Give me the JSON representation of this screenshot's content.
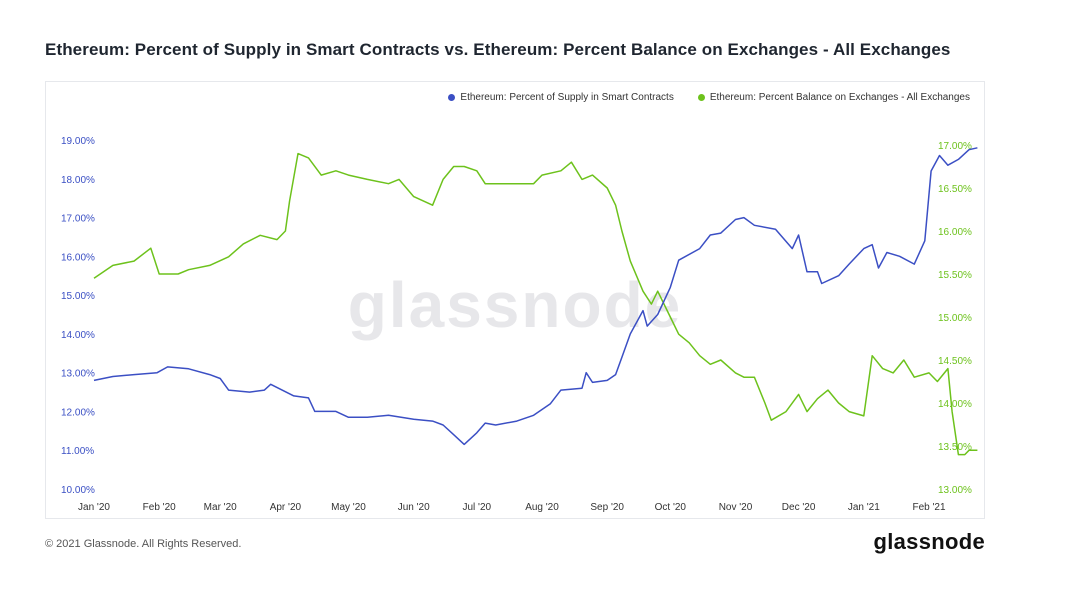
{
  "header": {
    "title": "Ethereum: Percent of Supply in Smart Contracts vs. Ethereum: Percent Balance on Exchanges - All Exchanges"
  },
  "footer": {
    "copyright": "© 2021 Glassnode. All Rights Reserved.",
    "brand": "glassnode",
    "watermark": "glassnode"
  },
  "colors": {
    "blue": "#3b4fc4",
    "green": "#6dc21c"
  },
  "chart_data": {
    "type": "line",
    "x_ticks": [
      "Jan '20",
      "Feb '20",
      "Mar '20",
      "Apr '20",
      "May '20",
      "Jun '20",
      "Jul '20",
      "Aug '20",
      "Sep '20",
      "Oct '20",
      "Nov '20",
      "Dec '20",
      "Jan '21",
      "Feb '21"
    ],
    "y_left": {
      "ticks": [
        "10.00%",
        "11.00%",
        "12.00%",
        "13.00%",
        "14.00%",
        "15.00%",
        "16.00%",
        "17.00%",
        "18.00%",
        "19.00%"
      ],
      "range": [
        10,
        19
      ]
    },
    "y_right": {
      "ticks": [
        "13.00%",
        "13.50%",
        "14.00%",
        "14.50%",
        "15.00%",
        "15.50%",
        "16.00%",
        "16.50%",
        "17.00%"
      ],
      "range": [
        13,
        17
      ]
    },
    "legend_position": "top-right",
    "series": [
      {
        "name": "Ethereum: Percent of Supply in Smart Contracts",
        "axis": "left",
        "points": [
          [
            "2020-01-01",
            12.8
          ],
          [
            "2020-01-10",
            12.9
          ],
          [
            "2020-01-20",
            12.95
          ],
          [
            "2020-01-31",
            13.0
          ],
          [
            "2020-02-05",
            13.15
          ],
          [
            "2020-02-15",
            13.1
          ],
          [
            "2020-02-25",
            12.95
          ],
          [
            "2020-03-01",
            12.85
          ],
          [
            "2020-03-05",
            12.55
          ],
          [
            "2020-03-15",
            12.5
          ],
          [
            "2020-03-22",
            12.55
          ],
          [
            "2020-03-25",
            12.7
          ],
          [
            "2020-04-05",
            12.4
          ],
          [
            "2020-04-12",
            12.35
          ],
          [
            "2020-04-15",
            12.0
          ],
          [
            "2020-04-25",
            12.0
          ],
          [
            "2020-05-01",
            11.85
          ],
          [
            "2020-05-10",
            11.85
          ],
          [
            "2020-05-20",
            11.9
          ],
          [
            "2020-06-01",
            11.8
          ],
          [
            "2020-06-10",
            11.75
          ],
          [
            "2020-06-15",
            11.65
          ],
          [
            "2020-06-20",
            11.4
          ],
          [
            "2020-06-25",
            11.15
          ],
          [
            "2020-07-01",
            11.45
          ],
          [
            "2020-07-05",
            11.7
          ],
          [
            "2020-07-10",
            11.65
          ],
          [
            "2020-07-20",
            11.75
          ],
          [
            "2020-07-28",
            11.9
          ],
          [
            "2020-08-05",
            12.2
          ],
          [
            "2020-08-10",
            12.55
          ],
          [
            "2020-08-20",
            12.6
          ],
          [
            "2020-08-22",
            13.0
          ],
          [
            "2020-08-25",
            12.75
          ],
          [
            "2020-09-01",
            12.8
          ],
          [
            "2020-09-05",
            12.95
          ],
          [
            "2020-09-08",
            13.4
          ],
          [
            "2020-09-12",
            14.0
          ],
          [
            "2020-09-18",
            14.6
          ],
          [
            "2020-09-20",
            14.2
          ],
          [
            "2020-09-25",
            14.5
          ],
          [
            "2020-10-01",
            15.2
          ],
          [
            "2020-10-05",
            15.9
          ],
          [
            "2020-10-15",
            16.2
          ],
          [
            "2020-10-20",
            16.55
          ],
          [
            "2020-10-25",
            16.6
          ],
          [
            "2020-11-01",
            16.95
          ],
          [
            "2020-11-05",
            17.0
          ],
          [
            "2020-11-10",
            16.8
          ],
          [
            "2020-11-20",
            16.7
          ],
          [
            "2020-11-28",
            16.2
          ],
          [
            "2020-12-01",
            16.55
          ],
          [
            "2020-12-05",
            15.6
          ],
          [
            "2020-12-10",
            15.6
          ],
          [
            "2020-12-12",
            15.3
          ],
          [
            "2020-12-20",
            15.5
          ],
          [
            "2020-12-25",
            15.8
          ],
          [
            "2021-01-01",
            16.2
          ],
          [
            "2021-01-05",
            16.3
          ],
          [
            "2021-01-08",
            15.7
          ],
          [
            "2021-01-12",
            16.1
          ],
          [
            "2021-01-18",
            16.0
          ],
          [
            "2021-01-25",
            15.8
          ],
          [
            "2021-01-30",
            16.4
          ],
          [
            "2021-02-02",
            18.2
          ],
          [
            "2021-02-06",
            18.6
          ],
          [
            "2021-02-10",
            18.35
          ],
          [
            "2021-02-15",
            18.5
          ],
          [
            "2021-02-20",
            18.75
          ],
          [
            "2021-02-24",
            18.8
          ]
        ]
      },
      {
        "name": "Ethereum: Percent Balance on Exchanges - All Exchanges",
        "axis": "right",
        "points": [
          [
            "2020-01-01",
            15.45
          ],
          [
            "2020-01-10",
            15.6
          ],
          [
            "2020-01-20",
            15.65
          ],
          [
            "2020-01-28",
            15.8
          ],
          [
            "2020-02-01",
            15.5
          ],
          [
            "2020-02-10",
            15.5
          ],
          [
            "2020-02-15",
            15.55
          ],
          [
            "2020-02-25",
            15.6
          ],
          [
            "2020-03-05",
            15.7
          ],
          [
            "2020-03-12",
            15.85
          ],
          [
            "2020-03-20",
            15.95
          ],
          [
            "2020-03-28",
            15.9
          ],
          [
            "2020-04-01",
            16.0
          ],
          [
            "2020-04-03",
            16.35
          ],
          [
            "2020-04-07",
            16.9
          ],
          [
            "2020-04-12",
            16.85
          ],
          [
            "2020-04-18",
            16.65
          ],
          [
            "2020-04-25",
            16.7
          ],
          [
            "2020-05-01",
            16.65
          ],
          [
            "2020-05-10",
            16.6
          ],
          [
            "2020-05-20",
            16.55
          ],
          [
            "2020-05-25",
            16.6
          ],
          [
            "2020-06-01",
            16.4
          ],
          [
            "2020-06-10",
            16.3
          ],
          [
            "2020-06-15",
            16.6
          ],
          [
            "2020-06-20",
            16.75
          ],
          [
            "2020-06-25",
            16.75
          ],
          [
            "2020-07-01",
            16.7
          ],
          [
            "2020-07-05",
            16.55
          ],
          [
            "2020-07-15",
            16.55
          ],
          [
            "2020-07-28",
            16.55
          ],
          [
            "2020-08-01",
            16.65
          ],
          [
            "2020-08-10",
            16.7
          ],
          [
            "2020-08-15",
            16.8
          ],
          [
            "2020-08-20",
            16.6
          ],
          [
            "2020-08-25",
            16.65
          ],
          [
            "2020-09-01",
            16.5
          ],
          [
            "2020-09-05",
            16.3
          ],
          [
            "2020-09-08",
            16.0
          ],
          [
            "2020-09-12",
            15.65
          ],
          [
            "2020-09-18",
            15.3
          ],
          [
            "2020-09-22",
            15.15
          ],
          [
            "2020-09-25",
            15.3
          ],
          [
            "2020-10-01",
            15.0
          ],
          [
            "2020-10-05",
            14.8
          ],
          [
            "2020-10-10",
            14.7
          ],
          [
            "2020-10-15",
            14.55
          ],
          [
            "2020-10-20",
            14.45
          ],
          [
            "2020-10-25",
            14.5
          ],
          [
            "2020-11-01",
            14.35
          ],
          [
            "2020-11-05",
            14.3
          ],
          [
            "2020-11-10",
            14.3
          ],
          [
            "2020-11-15",
            14.0
          ],
          [
            "2020-11-18",
            13.8
          ],
          [
            "2020-11-25",
            13.9
          ],
          [
            "2020-12-01",
            14.1
          ],
          [
            "2020-12-05",
            13.9
          ],
          [
            "2020-12-10",
            14.05
          ],
          [
            "2020-12-15",
            14.15
          ],
          [
            "2020-12-20",
            14.0
          ],
          [
            "2020-12-25",
            13.9
          ],
          [
            "2021-01-01",
            13.85
          ],
          [
            "2021-01-05",
            14.55
          ],
          [
            "2021-01-10",
            14.4
          ],
          [
            "2021-01-15",
            14.35
          ],
          [
            "2021-01-20",
            14.5
          ],
          [
            "2021-01-25",
            14.3
          ],
          [
            "2021-02-01",
            14.35
          ],
          [
            "2021-02-05",
            14.25
          ],
          [
            "2021-02-10",
            14.4
          ],
          [
            "2021-02-12",
            13.9
          ],
          [
            "2021-02-15",
            13.4
          ],
          [
            "2021-02-18",
            13.4
          ],
          [
            "2021-02-20",
            13.45
          ],
          [
            "2021-02-24",
            13.45
          ]
        ]
      }
    ]
  }
}
